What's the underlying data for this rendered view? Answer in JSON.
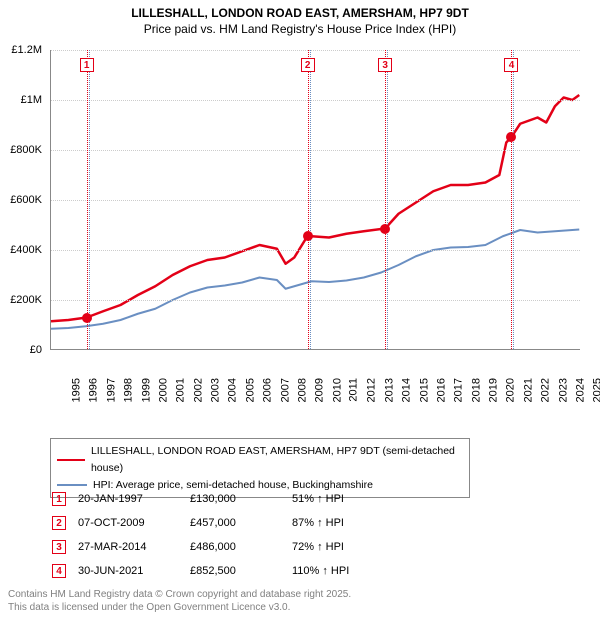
{
  "title": {
    "line1": "LILLESHALL, LONDON ROAD EAST, AMERSHAM, HP7 9DT",
    "line2": "Price paid vs. HM Land Registry's House Price Index (HPI)"
  },
  "chart": {
    "type": "line",
    "background_color": "#ffffff",
    "grid_color": "#cccccc",
    "axis_color": "#888888",
    "label_fontsize": 11,
    "x_range": [
      1995,
      2025.5
    ],
    "y_range": [
      0,
      1200000
    ],
    "y_ticks": [
      {
        "value": 0,
        "label": "£0"
      },
      {
        "value": 200000,
        "label": "£200K"
      },
      {
        "value": 400000,
        "label": "£400K"
      },
      {
        "value": 600000,
        "label": "£600K"
      },
      {
        "value": 800000,
        "label": "£800K"
      },
      {
        "value": 1000000,
        "label": "£1M"
      },
      {
        "value": 1200000,
        "label": "£1.2M"
      }
    ],
    "x_ticks": [
      1995,
      1996,
      1997,
      1998,
      1999,
      2000,
      2001,
      2002,
      2003,
      2004,
      2005,
      2006,
      2007,
      2008,
      2009,
      2010,
      2011,
      2012,
      2013,
      2014,
      2015,
      2016,
      2017,
      2018,
      2019,
      2020,
      2021,
      2022,
      2023,
      2024,
      2025
    ],
    "series": {
      "price_paid": {
        "color": "#e30017",
        "line_width": 2.5,
        "points": [
          [
            1995,
            115000
          ],
          [
            1996,
            120000
          ],
          [
            1997.05,
            130000
          ],
          [
            1998,
            155000
          ],
          [
            1999,
            180000
          ],
          [
            2000,
            220000
          ],
          [
            2001,
            255000
          ],
          [
            2002,
            300000
          ],
          [
            2003,
            335000
          ],
          [
            2004,
            360000
          ],
          [
            2005,
            370000
          ],
          [
            2006,
            395000
          ],
          [
            2007,
            420000
          ],
          [
            2008,
            405000
          ],
          [
            2008.5,
            345000
          ],
          [
            2009,
            370000
          ],
          [
            2009.77,
            457000
          ],
          [
            2010,
            455000
          ],
          [
            2011,
            450000
          ],
          [
            2012,
            465000
          ],
          [
            2013,
            475000
          ],
          [
            2014.23,
            486000
          ],
          [
            2015,
            545000
          ],
          [
            2016,
            590000
          ],
          [
            2017,
            635000
          ],
          [
            2018,
            660000
          ],
          [
            2019,
            660000
          ],
          [
            2020,
            670000
          ],
          [
            2020.8,
            700000
          ],
          [
            2021.2,
            830000
          ],
          [
            2021.5,
            852500
          ],
          [
            2022,
            905000
          ],
          [
            2023,
            930000
          ],
          [
            2023.5,
            910000
          ],
          [
            2024,
            975000
          ],
          [
            2024.5,
            1010000
          ],
          [
            2025,
            1000000
          ],
          [
            2025.4,
            1020000
          ]
        ]
      },
      "hpi": {
        "color": "#6a8fc2",
        "line_width": 2,
        "points": [
          [
            1995,
            85000
          ],
          [
            1996,
            88000
          ],
          [
            1997,
            95000
          ],
          [
            1998,
            105000
          ],
          [
            1999,
            120000
          ],
          [
            2000,
            145000
          ],
          [
            2001,
            165000
          ],
          [
            2002,
            200000
          ],
          [
            2003,
            230000
          ],
          [
            2004,
            250000
          ],
          [
            2005,
            258000
          ],
          [
            2006,
            270000
          ],
          [
            2007,
            290000
          ],
          [
            2008,
            280000
          ],
          [
            2008.5,
            245000
          ],
          [
            2009,
            255000
          ],
          [
            2010,
            275000
          ],
          [
            2011,
            272000
          ],
          [
            2012,
            278000
          ],
          [
            2013,
            290000
          ],
          [
            2014,
            310000
          ],
          [
            2015,
            340000
          ],
          [
            2016,
            375000
          ],
          [
            2017,
            400000
          ],
          [
            2018,
            410000
          ],
          [
            2019,
            412000
          ],
          [
            2020,
            420000
          ],
          [
            2021,
            455000
          ],
          [
            2022,
            480000
          ],
          [
            2023,
            470000
          ],
          [
            2024,
            475000
          ],
          [
            2025,
            480000
          ],
          [
            2025.4,
            482000
          ]
        ]
      }
    },
    "sale_markers": [
      {
        "n": "1",
        "x": 1997.05,
        "y": 130000
      },
      {
        "n": "2",
        "x": 2009.77,
        "y": 457000
      },
      {
        "n": "3",
        "x": 2014.23,
        "y": 486000
      },
      {
        "n": "4",
        "x": 2021.5,
        "y": 852500
      }
    ]
  },
  "legend": {
    "price_paid": {
      "label": "LILLESHALL, LONDON ROAD EAST, AMERSHAM, HP7 9DT (semi-detached house)",
      "color": "#e30017"
    },
    "hpi": {
      "label": "HPI: Average price, semi-detached house, Buckinghamshire",
      "color": "#6a8fc2"
    }
  },
  "sales": [
    {
      "n": "1",
      "date": "20-JAN-1997",
      "price": "£130,000",
      "delta": "51% ↑ HPI"
    },
    {
      "n": "2",
      "date": "07-OCT-2009",
      "price": "£457,000",
      "delta": "87% ↑ HPI"
    },
    {
      "n": "3",
      "date": "27-MAR-2014",
      "price": "£486,000",
      "delta": "72% ↑ HPI"
    },
    {
      "n": "4",
      "date": "30-JUN-2021",
      "price": "£852,500",
      "delta": "110% ↑ HPI"
    }
  ],
  "footer": {
    "line1": "Contains HM Land Registry data © Crown copyright and database right 2025.",
    "line2": "This data is licensed under the Open Government Licence v3.0."
  }
}
